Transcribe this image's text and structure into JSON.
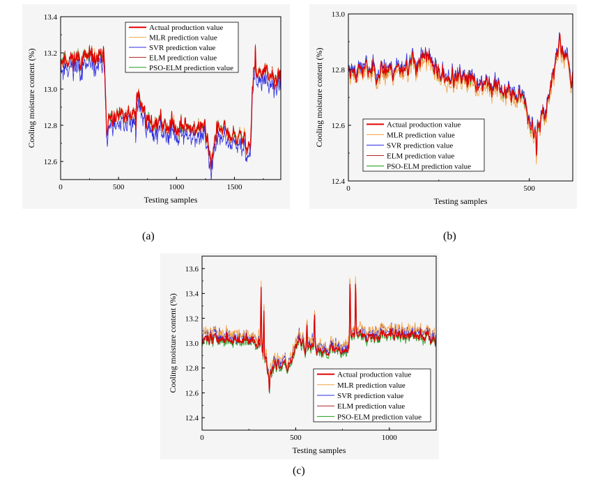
{
  "figure": {
    "captions": [
      "(a)",
      "(b)",
      "(c)"
    ]
  },
  "chart_data": [
    {
      "panel": "a",
      "type": "line",
      "xlabel": "Testing samples",
      "ylabel": "Cooling moisture content (%)",
      "xlim": [
        0,
        1900
      ],
      "ylim": [
        12.5,
        13.4
      ],
      "xticks": [
        0,
        500,
        1000,
        1500
      ],
      "yticks": [
        12.6,
        12.8,
        13.0,
        13.2,
        13.4
      ],
      "ytick_labels": [
        "12.6",
        "12.8",
        "13.0",
        "13.2",
        "13.4"
      ],
      "legend_position": "top-right",
      "n": 520,
      "seed": 11,
      "noise": 0.045,
      "segments": [
        [
          0,
          13.17
        ],
        [
          380,
          13.17
        ],
        [
          395,
          12.82
        ],
        [
          640,
          12.85
        ],
        [
          660,
          12.97
        ],
        [
          760,
          12.82
        ],
        [
          1250,
          12.78
        ],
        [
          1300,
          12.62
        ],
        [
          1350,
          12.78
        ],
        [
          1640,
          12.7
        ],
        [
          1660,
          13.1
        ],
        [
          1900,
          13.05
        ]
      ],
      "spikes": [
        [
          1680,
          0.12
        ],
        [
          1660,
          -0.1
        ],
        [
          650,
          -0.18
        ],
        [
          1300,
          -0.08
        ]
      ],
      "series": [
        {
          "name": "Actual production value",
          "color": "#e00000",
          "width": 1.3,
          "bias": 0.0,
          "extra_noise": 0.0
        },
        {
          "name": "MLR prediction value",
          "color": "#f4a040",
          "width": 0.8,
          "bias": 0.0,
          "extra_noise": 0.02
        },
        {
          "name": "SVR prediction value",
          "color": "#2a2ae0",
          "width": 0.8,
          "bias": -0.05,
          "extra_noise": 0.03
        },
        {
          "name": "ELM prediction value",
          "color": "#b02020",
          "width": 0.8,
          "bias": 0.0,
          "extra_noise": 0.02
        },
        {
          "name": "PSO-ELM prediction value",
          "color": "#1a9a1a",
          "width": 0.8,
          "bias": 0.0,
          "extra_noise": 0.02
        }
      ]
    },
    {
      "panel": "b",
      "type": "line",
      "xlabel": "Testing samples",
      "ylabel": "Cooling moisture content (%)",
      "xlim": [
        0,
        620
      ],
      "ylim": [
        12.4,
        13.0
      ],
      "xticks": [
        0,
        500
      ],
      "yticks": [
        12.4,
        12.6,
        12.8,
        13.0
      ],
      "ytick_labels": [
        "12.4",
        "12.6",
        "12.8",
        "13.0"
      ],
      "legend_position": "bottom-left",
      "n": 420,
      "seed": 23,
      "noise": 0.03,
      "segments": [
        [
          0,
          12.8
        ],
        [
          120,
          12.8
        ],
        [
          220,
          12.84
        ],
        [
          250,
          12.78
        ],
        [
          400,
          12.74
        ],
        [
          480,
          12.7
        ],
        [
          515,
          12.58
        ],
        [
          545,
          12.65
        ],
        [
          575,
          12.85
        ],
        [
          600,
          12.86
        ],
        [
          620,
          12.75
        ]
      ],
      "spikes": [
        [
          520,
          -0.12
        ],
        [
          230,
          0.05
        ],
        [
          585,
          0.06
        ]
      ],
      "series": [
        {
          "name": "Actual production value",
          "color": "#e00000",
          "width": 1.3,
          "bias": 0.0,
          "extra_noise": 0.0
        },
        {
          "name": "MLR prediction value",
          "color": "#f4a040",
          "width": 0.8,
          "bias": -0.02,
          "extra_noise": 0.015
        },
        {
          "name": "SVR prediction value",
          "color": "#2a2ae0",
          "width": 0.8,
          "bias": 0.01,
          "extra_noise": 0.015
        },
        {
          "name": "ELM prediction value",
          "color": "#b02020",
          "width": 0.8,
          "bias": 0.0,
          "extra_noise": 0.015
        },
        {
          "name": "PSO-ELM prediction value",
          "color": "#1a9a1a",
          "width": 0.8,
          "bias": 0.0,
          "extra_noise": 0.015
        }
      ]
    },
    {
      "panel": "c",
      "type": "line",
      "xlabel": "Testing samples",
      "ylabel": "Cooling moisture content (%)",
      "xlim": [
        0,
        1250
      ],
      "ylim": [
        12.3,
        13.7
      ],
      "xticks": [
        0,
        500,
        1000
      ],
      "yticks": [
        12.4,
        12.6,
        12.8,
        13.0,
        13.2,
        13.4,
        13.6
      ],
      "ytick_labels": [
        "12.4",
        "12.6",
        "12.8",
        "13.0",
        "13.2",
        "13.4",
        "13.6"
      ],
      "legend_position": "bottom-right",
      "n": 500,
      "seed": 37,
      "noise": 0.04,
      "segments": [
        [
          0,
          13.05
        ],
        [
          300,
          13.0
        ],
        [
          320,
          13.0
        ],
        [
          350,
          12.78
        ],
        [
          460,
          12.82
        ],
        [
          520,
          13.02
        ],
        [
          560,
          12.95
        ],
        [
          780,
          12.95
        ],
        [
          800,
          13.08
        ],
        [
          1250,
          13.05
        ]
      ],
      "spikes": [
        [
          315,
          0.55
        ],
        [
          330,
          0.45
        ],
        [
          790,
          0.6
        ],
        [
          820,
          0.5
        ],
        [
          560,
          0.3
        ],
        [
          600,
          0.32
        ],
        [
          360,
          -0.2
        ]
      ],
      "series": [
        {
          "name": "Actual production value",
          "color": "#e00000",
          "width": 1.3,
          "bias": 0.0,
          "extra_noise": 0.0
        },
        {
          "name": "MLR prediction value",
          "color": "#f4a040",
          "width": 0.8,
          "bias": 0.05,
          "extra_noise": 0.03
        },
        {
          "name": "SVR prediction value",
          "color": "#2a2ae0",
          "width": 0.8,
          "bias": 0.03,
          "extra_noise": 0.04
        },
        {
          "name": "ELM prediction value",
          "color": "#b02020",
          "width": 0.8,
          "bias": 0.0,
          "extra_noise": 0.02
        },
        {
          "name": "PSO-ELM prediction value",
          "color": "#1a9a1a",
          "width": 0.8,
          "bias": -0.02,
          "extra_noise": 0.02
        }
      ]
    }
  ]
}
